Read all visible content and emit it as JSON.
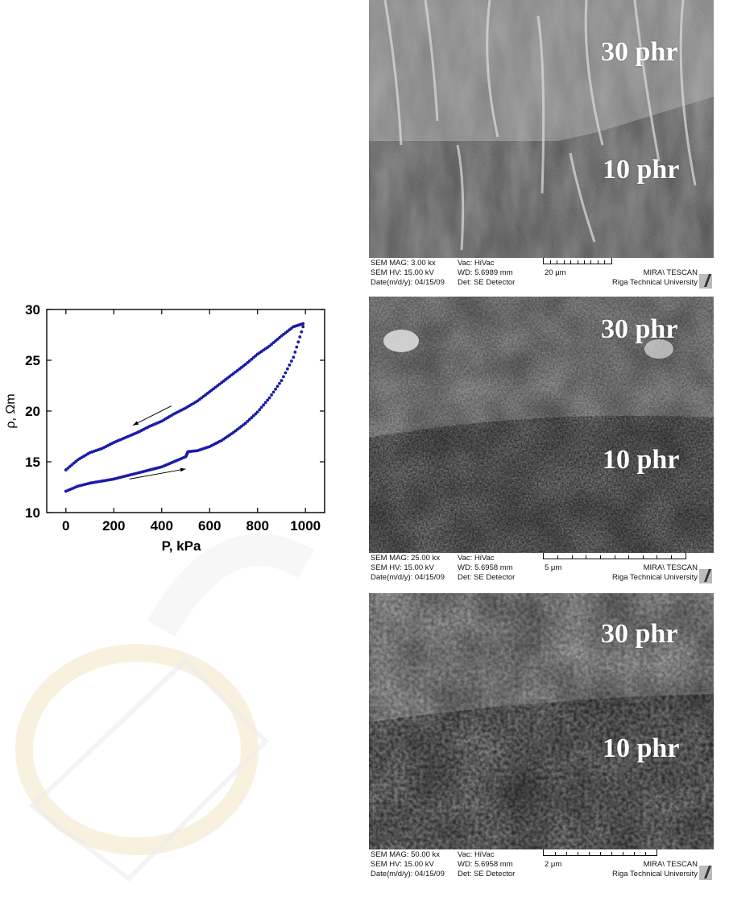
{
  "chart_data": {
    "type": "scatter",
    "xlabel": "P, kPa",
    "ylabel": "ρ, Ωm",
    "xlim": [
      -80,
      1080
    ],
    "ylim": [
      10,
      30
    ],
    "xticks": [
      0,
      200,
      400,
      600,
      800,
      1000
    ],
    "yticks": [
      10,
      15,
      20,
      25,
      30
    ],
    "xtick_labels": [
      "0",
      "200",
      "400",
      "600",
      "800",
      "1000"
    ],
    "ytick_labels": [
      "10",
      "15",
      "20",
      "25",
      "30"
    ],
    "marker_color": "#1a1aa8",
    "series": [
      {
        "points": [
          [
            0,
            12.1
          ],
          [
            50,
            12.6
          ],
          [
            100,
            12.9
          ],
          [
            150,
            13.1
          ],
          [
            200,
            13.3
          ],
          [
            250,
            13.6
          ],
          [
            300,
            13.9
          ],
          [
            350,
            14.2
          ],
          [
            400,
            14.5
          ],
          [
            450,
            15.0
          ],
          [
            500,
            15.5
          ],
          [
            510,
            16.0
          ],
          [
            550,
            16.1
          ],
          [
            600,
            16.5
          ],
          [
            650,
            17.1
          ],
          [
            700,
            17.9
          ],
          [
            750,
            18.8
          ],
          [
            800,
            19.9
          ],
          [
            850,
            21.3
          ],
          [
            900,
            23.0
          ],
          [
            950,
            25.3
          ],
          [
            990,
            28.3
          ]
        ]
      },
      {
        "points": [
          [
            990,
            28.6
          ],
          [
            950,
            28.3
          ],
          [
            900,
            27.4
          ],
          [
            850,
            26.4
          ],
          [
            800,
            25.6
          ],
          [
            750,
            24.6
          ],
          [
            700,
            23.7
          ],
          [
            650,
            22.8
          ],
          [
            600,
            21.9
          ],
          [
            550,
            21.0
          ],
          [
            500,
            20.3
          ],
          [
            450,
            19.7
          ],
          [
            400,
            19.0
          ],
          [
            350,
            18.5
          ],
          [
            300,
            17.9
          ],
          [
            250,
            17.4
          ],
          [
            200,
            16.9
          ],
          [
            150,
            16.3
          ],
          [
            100,
            15.9
          ],
          [
            50,
            15.2
          ],
          [
            0,
            14.2
          ]
        ]
      }
    ]
  },
  "sem_panels": [
    {
      "labels": {
        "upper": "30 phr",
        "lower": "10 phr"
      },
      "info": {
        "mag": "SEM MAG: 3.00 kx",
        "hv": "SEM HV: 15.00 kV",
        "date": "Date(m/d/y): 04/15/09",
        "vac": "Vac: HiVac",
        "wd": "WD: 5.6989 mm",
        "det": "Det: SE Detector",
        "scale": "20 μm",
        "instrument": "MIRA\\ TESCAN",
        "university": "Riga Technical University"
      }
    },
    {
      "labels": {
        "upper": "30 phr",
        "lower": "10 phr"
      },
      "info": {
        "mag": "SEM MAG: 25.00 kx",
        "hv": "SEM HV: 15.00 kV",
        "date": "Date(m/d/y): 04/15/09",
        "vac": "Vac: HiVac",
        "wd": "WD: 5.6958 mm",
        "det": "Det: SE Detector",
        "scale": "5 μm",
        "instrument": "MIRA\\ TESCAN",
        "university": "Riga Technical University"
      }
    },
    {
      "labels": {
        "upper": "30 phr",
        "lower": "10 phr"
      },
      "info": {
        "mag": "SEM MAG: 50.00 kx",
        "hv": "SEM HV: 15.00 kV",
        "date": "Date(m/d/y): 04/15/09",
        "vac": "Vac: HiVac",
        "wd": "WD: 5.6958 mm",
        "det": "Det: SE Detector",
        "scale": "2 μm",
        "instrument": "MIRA\\ TESCAN",
        "university": "Riga Technical University"
      }
    }
  ]
}
